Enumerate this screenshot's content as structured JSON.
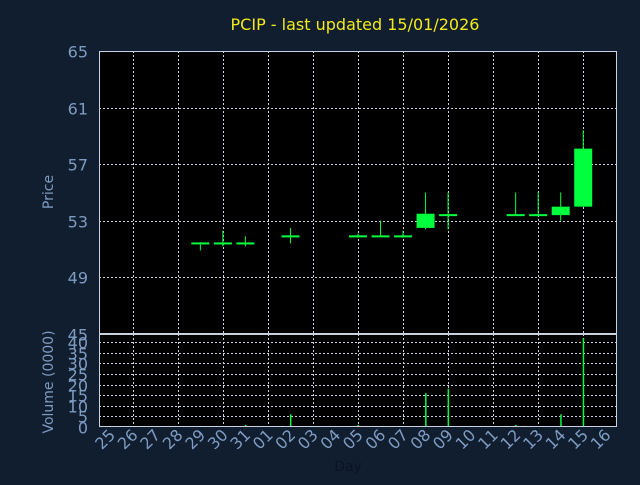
{
  "chart_data": [
    {
      "type": "candlestick",
      "title": "PCIP - last updated 15/01/2026",
      "ylabel": "Price",
      "ylim": [
        45,
        65
      ],
      "yticks": [
        65,
        61,
        57,
        53,
        49,
        45
      ],
      "grid": true,
      "categories": [
        "25",
        "26",
        "27",
        "28",
        "29",
        "30",
        "31",
        "01",
        "02",
        "03",
        "04",
        "05",
        "06",
        "07",
        "08",
        "09",
        "10",
        "11",
        "12",
        "13",
        "14",
        "15",
        "16"
      ],
      "ohlc": [
        {
          "day": "29",
          "open": 51.4,
          "high": 51.5,
          "low": 50.9,
          "close": 51.4
        },
        {
          "day": "30",
          "open": 51.4,
          "high": 52.3,
          "low": 51.2,
          "close": 51.4
        },
        {
          "day": "31",
          "open": 51.4,
          "high": 51.9,
          "low": 51.2,
          "close": 51.4
        },
        {
          "day": "02",
          "open": 51.9,
          "high": 52.5,
          "low": 51.4,
          "close": 51.9
        },
        {
          "day": "05",
          "open": 51.9,
          "high": 52.1,
          "low": 51.8,
          "close": 51.9
        },
        {
          "day": "06",
          "open": 51.9,
          "high": 53.0,
          "low": 51.9,
          "close": 51.9
        },
        {
          "day": "07",
          "open": 51.9,
          "high": 52.3,
          "low": 51.8,
          "close": 51.9
        },
        {
          "day": "08",
          "open": 52.5,
          "high": 55.0,
          "low": 52.4,
          "close": 53.5
        },
        {
          "day": "09",
          "open": 53.4,
          "high": 55.0,
          "low": 52.4,
          "close": 53.4
        },
        {
          "day": "12",
          "open": 53.4,
          "high": 55.0,
          "low": 53.4,
          "close": 53.4
        },
        {
          "day": "13",
          "open": 53.4,
          "high": 55.0,
          "low": 53.3,
          "close": 53.4
        },
        {
          "day": "14",
          "open": 53.4,
          "high": 55.0,
          "low": 53.0,
          "close": 54.0
        },
        {
          "day": "15",
          "open": 54.0,
          "high": 59.4,
          "low": 54.0,
          "close": 58.1
        }
      ]
    },
    {
      "type": "bar",
      "ylabel": "Volume (0000)",
      "xlabel": "Day",
      "ylim": [
        0,
        42
      ],
      "yticks": [
        0,
        5,
        10,
        15,
        20,
        25,
        30,
        35,
        40
      ],
      "grid": true,
      "categories": [
        "25",
        "26",
        "27",
        "28",
        "29",
        "30",
        "31",
        "01",
        "02",
        "03",
        "04",
        "05",
        "06",
        "07",
        "08",
        "09",
        "10",
        "11",
        "12",
        "13",
        "14",
        "15",
        "16"
      ],
      "values": [
        0,
        0,
        0,
        0,
        0.5,
        0,
        1,
        0,
        6,
        0,
        0,
        1,
        0.5,
        0,
        16,
        18,
        0,
        0,
        1,
        0,
        6,
        42,
        0
      ]
    }
  ],
  "colors": {
    "background": "#111e30",
    "plot_background": "#000000",
    "grid": "#c9d3e0",
    "candle": "#00ff3c",
    "title": "#f2ea19",
    "axis_text": "#7e9bc0",
    "xlabel": "#0b1422"
  }
}
